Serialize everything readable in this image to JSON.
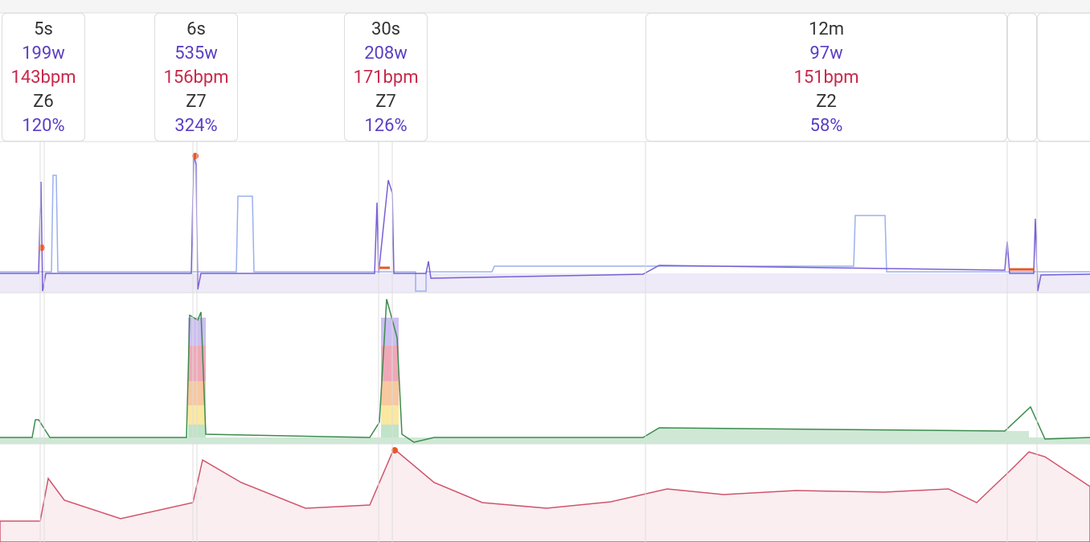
{
  "intervals": [
    {
      "duration": "5s",
      "power": "199w",
      "heart_rate": "143bpm",
      "zone": "Z6",
      "percent": "120%"
    },
    {
      "duration": "6s",
      "power": "535w",
      "heart_rate": "156bpm",
      "zone": "Z7",
      "percent": "324%"
    },
    {
      "duration": "30s",
      "power": "208w",
      "heart_rate": "171bpm",
      "zone": "Z7",
      "percent": "126%"
    },
    {
      "duration": "12m",
      "power": "97w",
      "heart_rate": "151bpm",
      "zone": "Z2",
      "percent": "58%"
    }
  ]
}
